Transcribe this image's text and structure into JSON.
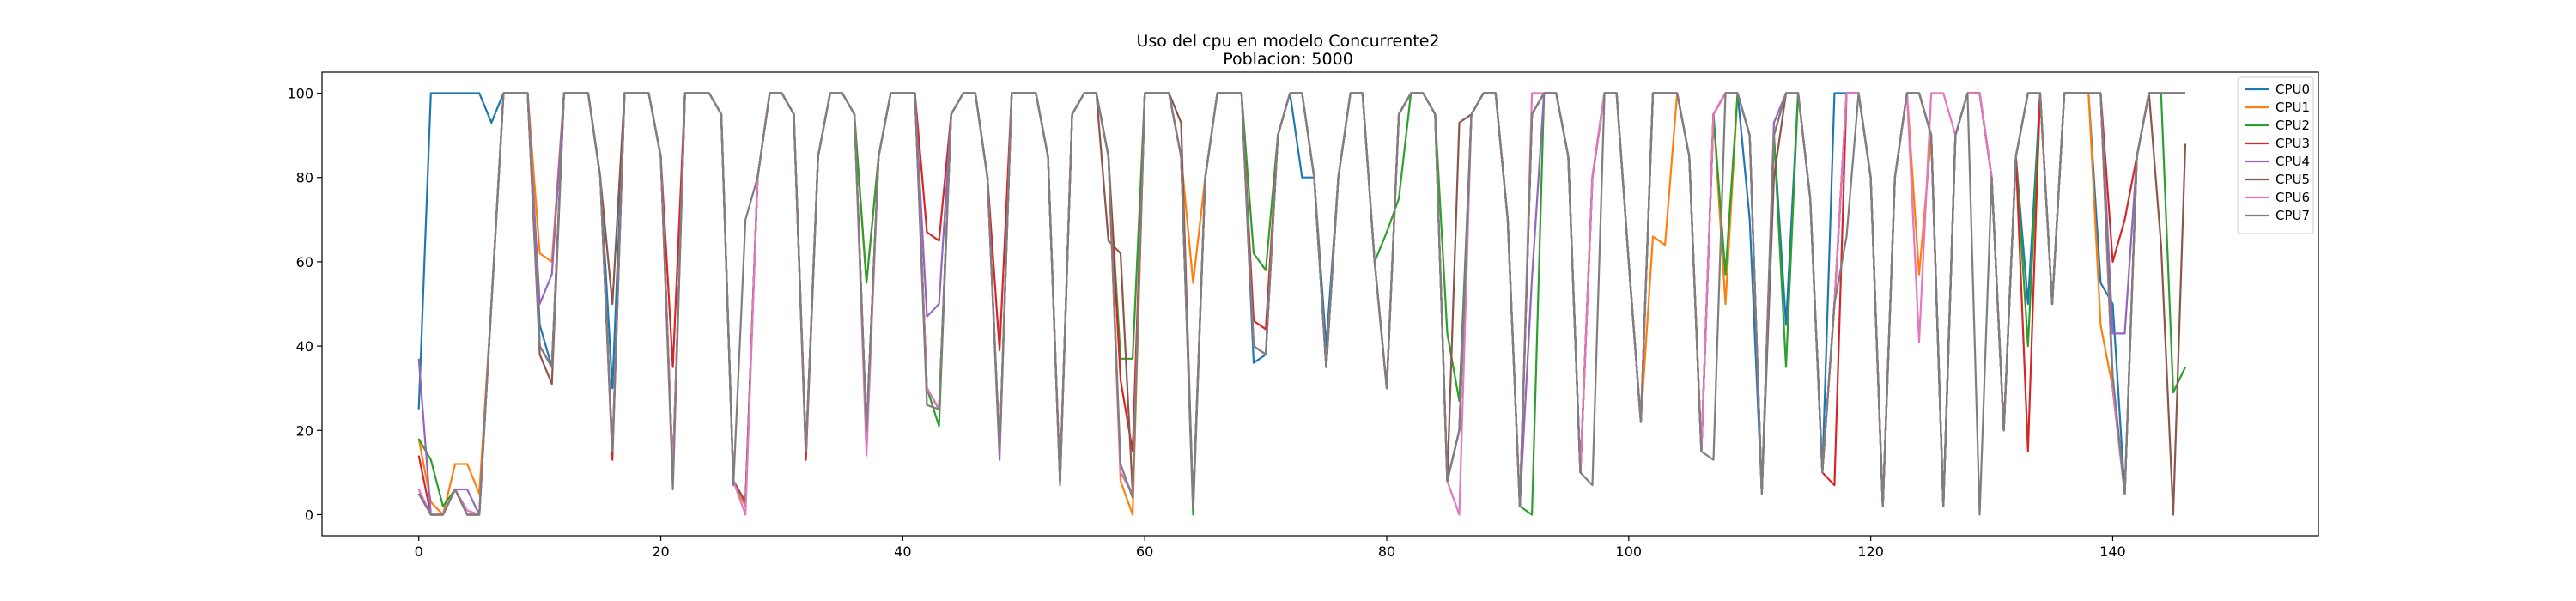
{
  "chart_data": {
    "type": "line",
    "title": "Uso del cpu en modelo Concurrente2",
    "subtitle": "Poblacion: 5000",
    "xlabel": "",
    "ylabel": "",
    "xlim": [
      -8,
      157
    ],
    "ylim": [
      -5,
      105
    ],
    "xticks": [
      0,
      20,
      40,
      60,
      80,
      100,
      120,
      140
    ],
    "yticks": [
      0,
      20,
      40,
      60,
      80,
      100
    ],
    "grid": false,
    "legend_position": "top-right",
    "base_pattern": [
      5,
      0,
      0,
      6,
      0,
      0,
      50,
      100,
      100,
      100,
      40,
      35,
      100,
      100,
      100,
      80,
      15,
      100,
      100,
      100,
      85,
      10,
      100,
      100,
      100,
      95,
      8,
      3,
      80,
      100,
      100,
      95,
      15,
      85,
      100,
      100,
      95,
      20,
      85,
      100,
      100,
      100,
      30,
      25,
      95,
      100,
      100,
      80,
      15,
      100,
      100,
      100,
      85,
      8,
      95,
      100,
      100,
      85,
      10,
      5,
      100,
      100,
      100,
      85,
      2,
      80,
      100,
      100,
      100,
      40,
      38,
      90,
      100,
      100,
      80,
      35,
      80,
      100,
      100,
      60,
      30,
      95,
      100,
      100,
      95,
      8,
      20,
      95,
      100,
      100,
      70,
      2,
      95,
      100,
      100,
      85,
      10,
      80,
      100,
      100,
      60,
      22,
      100,
      100,
      100,
      85,
      15,
      95,
      100,
      100,
      90,
      5,
      90,
      100,
      100,
      75,
      10,
      50,
      100,
      100,
      80,
      2,
      80,
      100,
      100,
      90,
      2,
      90,
      100,
      100,
      80,
      20,
      85,
      100,
      100,
      50,
      100,
      100,
      100,
      100,
      30,
      5,
      85,
      100,
      100,
      100,
      100
    ],
    "series": [
      {
        "name": "CPU0",
        "color": "#1f77b4",
        "overrides": {
          "0": 25,
          "1": 100,
          "2": 100,
          "3": 100,
          "4": 100,
          "5": 100,
          "6": 93,
          "7": 100,
          "10": 45,
          "13": 100,
          "16": 30,
          "27": 2,
          "69": 36,
          "73": 80,
          "75": 40,
          "110": 70,
          "113": 45,
          "117": 100,
          "133": 50,
          "139": 55,
          "140": 50
        }
      },
      {
        "name": "CPU1",
        "color": "#ff7f0e",
        "overrides": {
          "0": 18,
          "1": 3,
          "2": 0,
          "3": 12,
          "4": 12,
          "5": 5,
          "10": 62,
          "11": 60,
          "27": 2,
          "37": 55,
          "58": 8,
          "59": 0,
          "64": 55,
          "102": 66,
          "103": 64,
          "108": 50,
          "124": 57,
          "139": 45
        }
      },
      {
        "name": "CPU2",
        "color": "#2ca02c",
        "overrides": {
          "0": 18,
          "1": 13,
          "2": 2,
          "37": 55,
          "43": 21,
          "58": 37,
          "59": 37,
          "64": 0,
          "69": 62,
          "70": 58,
          "80": 67,
          "81": 75,
          "85": 43,
          "86": 27,
          "92": 0,
          "108": 57,
          "113": 35,
          "133": 40,
          "145": 29,
          "146": 35
        }
      },
      {
        "name": "CPU3",
        "color": "#d62728",
        "overrides": {
          "0": 14,
          "1": 0,
          "16": 13,
          "21": 35,
          "32": 13,
          "42": 67,
          "43": 65,
          "48": 39,
          "58": 32,
          "59": 15,
          "69": 46,
          "70": 44,
          "117": 7,
          "133": 15,
          "140": 60,
          "141": 70
        }
      },
      {
        "name": "CPU4",
        "color": "#9467bd",
        "overrides": {
          "0": 37,
          "1": 0,
          "4": 6,
          "10": 50,
          "11": 57,
          "42": 47,
          "43": 50,
          "48": 13,
          "92": 56,
          "112": 93,
          "140": 43,
          "141": 43
        }
      },
      {
        "name": "CPU5",
        "color": "#8c564b",
        "overrides": {
          "0": 5,
          "1": 0,
          "10": 38,
          "11": 31,
          "16": 50,
          "57": 65,
          "58": 62,
          "63": 93,
          "66": 100,
          "86": 93,
          "112": 80,
          "144": 64,
          "145": 0,
          "146": 88
        }
      },
      {
        "name": "CPU6",
        "color": "#e377c2",
        "overrides": {
          "0": 6,
          "1": 0,
          "4": 1,
          "27": 0,
          "37": 14,
          "86": 0,
          "92": 100,
          "124": 41,
          "125": 100,
          "126": 100
        }
      },
      {
        "name": "CPU7",
        "color": "#7f7f7f",
        "overrides": {
          "0": 5,
          "1": 0,
          "21": 6,
          "26": 7,
          "27": 70,
          "42": 26,
          "53": 7,
          "58": 12,
          "59": 4,
          "97": 7,
          "107": 13,
          "118": 66,
          "129": 0,
          "140": 33
        }
      }
    ]
  }
}
